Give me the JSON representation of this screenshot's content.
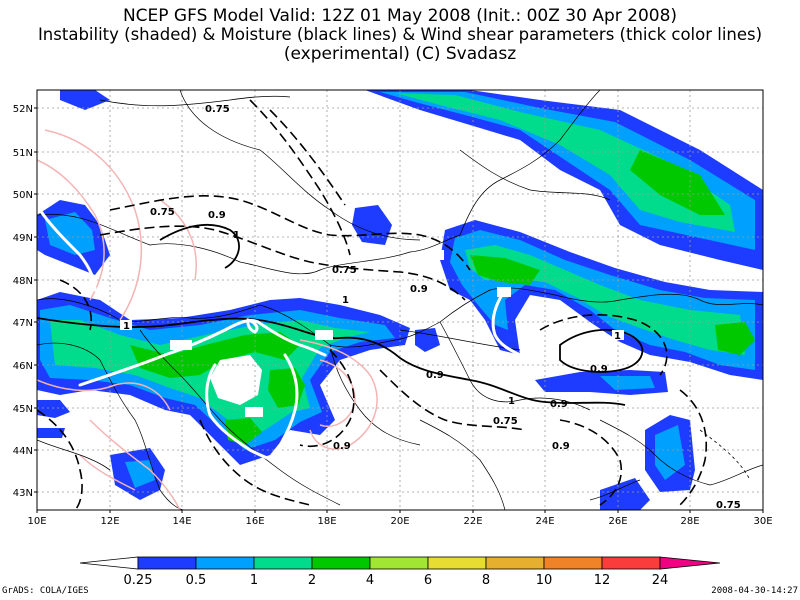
{
  "title": {
    "line1": "NCEP GFS Model  Valid: 12Z 01 May 2008 (Init.: 00Z 30 Apr 2008)",
    "line2": "Instability (shaded) & Moisture (black lines) & Wind shear parameters (thick color lines)",
    "line3": "(experimental)     (C) Svadasz"
  },
  "axes": {
    "lat_labels": [
      "52N",
      "51N",
      "50N",
      "49N",
      "48N",
      "47N",
      "46N",
      "45N",
      "44N",
      "43N"
    ],
    "lon_labels": [
      "10E",
      "12E",
      "14E",
      "16E",
      "18E",
      "20E",
      "22E",
      "24E",
      "26E",
      "28E",
      "30E"
    ]
  },
  "contour_labels": [
    {
      "text": "0.75"
    },
    {
      "text": "0.75"
    },
    {
      "text": "0.9"
    },
    {
      "text": "1"
    },
    {
      "text": "0.75"
    },
    {
      "text": "0.9"
    },
    {
      "text": "1"
    },
    {
      "text": "1"
    },
    {
      "text": "0.9"
    },
    {
      "text": "0.9"
    },
    {
      "text": "1"
    },
    {
      "text": "0.9"
    },
    {
      "text": "0.75"
    },
    {
      "text": "0.9"
    },
    {
      "text": "0.75"
    },
    {
      "text": "0.9"
    },
    {
      "text": "1"
    }
  ],
  "colorbar": {
    "labels": [
      "0.25",
      "0.5",
      "1",
      "2",
      "4",
      "6",
      "8",
      "10",
      "12",
      "24"
    ],
    "colors": [
      "#ffffff",
      "#1e3cff",
      "#00a0ff",
      "#00dc8c",
      "#00c800",
      "#a0e632",
      "#e6dc32",
      "#e6af2d",
      "#f08228",
      "#fa3c3c",
      "#f00082"
    ]
  },
  "footer": {
    "left": "GrADS: COLA/IGES",
    "right": "2008-04-30-14:27"
  },
  "colors": {
    "blue": "#1e3cff",
    "light_blue": "#00a0ff",
    "teal": "#00dc8c",
    "green": "#00c800",
    "shear_pink": "#f4b4b4"
  }
}
